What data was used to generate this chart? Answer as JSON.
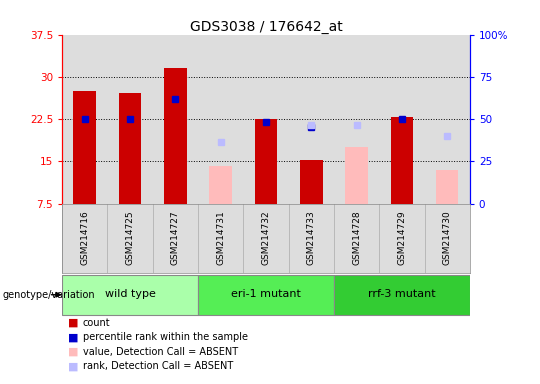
{
  "title": "GDS3038 / 176642_at",
  "samples": [
    "GSM214716",
    "GSM214725",
    "GSM214727",
    "GSM214731",
    "GSM214732",
    "GSM214733",
    "GSM214728",
    "GSM214729",
    "GSM214730"
  ],
  "groups": [
    {
      "label": "wild type",
      "indices": [
        0,
        1,
        2
      ],
      "color": "#aaffaa"
    },
    {
      "label": "eri-1 mutant",
      "indices": [
        3,
        4,
        5
      ],
      "color": "#55ee55"
    },
    {
      "label": "rrf-3 mutant",
      "indices": [
        6,
        7,
        8
      ],
      "color": "#33cc33"
    }
  ],
  "count_values": [
    27.5,
    27.2,
    31.5,
    null,
    22.5,
    15.3,
    null,
    22.8,
    null
  ],
  "count_color": "#cc0000",
  "percentile_values": [
    22.5,
    22.5,
    26.0,
    null,
    22.0,
    21.0,
    null,
    22.5,
    null
  ],
  "percentile_color": "#0000cc",
  "absent_value_values": [
    null,
    null,
    null,
    14.2,
    null,
    null,
    17.5,
    null,
    13.5
  ],
  "absent_value_color": "#ffbbbb",
  "absent_rank_values": [
    null,
    null,
    null,
    18.5,
    null,
    21.5,
    21.5,
    null,
    19.5
  ],
  "absent_rank_color": "#bbbbff",
  "ylim_left": [
    7.5,
    37.5
  ],
  "ylim_right": [
    0,
    100
  ],
  "yticks_left": [
    7.5,
    15.0,
    22.5,
    30.0,
    37.5
  ],
  "yticks_right": [
    0,
    25,
    50,
    75,
    100
  ],
  "bar_width": 0.5,
  "plot_bg_color": "#dddddd",
  "legend_items": [
    {
      "color": "#cc0000",
      "label": "count"
    },
    {
      "color": "#0000cc",
      "label": "percentile rank within the sample"
    },
    {
      "color": "#ffbbbb",
      "label": "value, Detection Call = ABSENT"
    },
    {
      "color": "#bbbbff",
      "label": "rank, Detection Call = ABSENT"
    }
  ]
}
